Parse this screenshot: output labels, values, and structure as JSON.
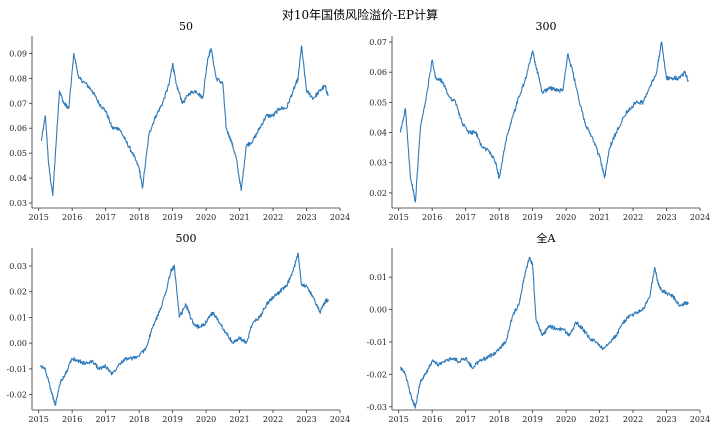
{
  "figure": {
    "title": "对10年国债风险溢价-EP计算"
  },
  "chart_data": [
    {
      "type": "line",
      "title": "50",
      "x_range": [
        2014.8,
        2024.0
      ],
      "xticks": [
        2015,
        2016,
        2017,
        2018,
        2019,
        2020,
        2021,
        2022,
        2023,
        2024
      ],
      "ylim": [
        0.028,
        0.097
      ],
      "yticks": [
        0.03,
        0.04,
        0.05,
        0.06,
        0.07,
        0.08,
        0.09
      ],
      "ytick_labels": [
        "0.03",
        "0.04",
        "0.05",
        "0.06",
        "0.07",
        "0.08",
        "0.09"
      ],
      "series": [
        {
          "x": [
            2015.08,
            2015.2,
            2015.3,
            2015.42,
            2015.5,
            2015.62,
            2015.75,
            2015.9,
            2016.05,
            2016.2,
            2016.4,
            2016.6,
            2016.8,
            2017.0,
            2017.2,
            2017.4,
            2017.6,
            2017.8,
            2018.0,
            2018.1,
            2018.3,
            2018.5,
            2018.7,
            2018.9,
            2019.0,
            2019.1,
            2019.3,
            2019.5,
            2019.7,
            2019.9,
            2020.05,
            2020.15,
            2020.3,
            2020.5,
            2020.6,
            2020.75,
            2020.9,
            2021.05,
            2021.2,
            2021.4,
            2021.6,
            2021.8,
            2022.0,
            2022.2,
            2022.4,
            2022.6,
            2022.75,
            2022.85,
            2023.0,
            2023.2,
            2023.4,
            2023.55,
            2023.65
          ],
          "y": [
            0.055,
            0.065,
            0.045,
            0.033,
            0.05,
            0.075,
            0.07,
            0.068,
            0.09,
            0.08,
            0.078,
            0.075,
            0.07,
            0.067,
            0.06,
            0.06,
            0.055,
            0.05,
            0.044,
            0.036,
            0.058,
            0.065,
            0.07,
            0.078,
            0.086,
            0.078,
            0.07,
            0.074,
            0.075,
            0.072,
            0.088,
            0.092,
            0.08,
            0.078,
            0.06,
            0.055,
            0.048,
            0.035,
            0.053,
            0.055,
            0.06,
            0.065,
            0.065,
            0.068,
            0.068,
            0.075,
            0.08,
            0.093,
            0.075,
            0.072,
            0.075,
            0.077,
            0.073
          ]
        }
      ]
    },
    {
      "type": "line",
      "title": "300",
      "x_range": [
        2014.8,
        2024.0
      ],
      "xticks": [
        2015,
        2016,
        2017,
        2018,
        2019,
        2020,
        2021,
        2022,
        2023,
        2024
      ],
      "ylim": [
        0.015,
        0.072
      ],
      "yticks": [
        0.02,
        0.03,
        0.04,
        0.05,
        0.06,
        0.07
      ],
      "ytick_labels": [
        "0.02",
        "0.03",
        "0.04",
        "0.05",
        "0.06",
        "0.07"
      ],
      "series": [
        {
          "x": [
            2015.05,
            2015.2,
            2015.35,
            2015.5,
            2015.65,
            2015.8,
            2016.0,
            2016.1,
            2016.3,
            2016.5,
            2016.7,
            2016.9,
            2017.1,
            2017.3,
            2017.5,
            2017.7,
            2017.9,
            2018.0,
            2018.2,
            2018.4,
            2018.6,
            2018.8,
            2019.0,
            2019.1,
            2019.3,
            2019.5,
            2019.7,
            2019.9,
            2020.05,
            2020.2,
            2020.4,
            2020.6,
            2020.8,
            2021.0,
            2021.15,
            2021.3,
            2021.5,
            2021.7,
            2021.9,
            2022.1,
            2022.3,
            2022.5,
            2022.7,
            2022.85,
            2023.0,
            2023.2,
            2023.4,
            2023.55,
            2023.65
          ],
          "y": [
            0.04,
            0.048,
            0.025,
            0.017,
            0.042,
            0.05,
            0.064,
            0.058,
            0.057,
            0.052,
            0.05,
            0.043,
            0.04,
            0.04,
            0.035,
            0.034,
            0.03,
            0.025,
            0.037,
            0.045,
            0.052,
            0.058,
            0.067,
            0.062,
            0.053,
            0.055,
            0.054,
            0.054,
            0.066,
            0.06,
            0.05,
            0.042,
            0.038,
            0.032,
            0.025,
            0.035,
            0.04,
            0.045,
            0.048,
            0.05,
            0.05,
            0.055,
            0.06,
            0.07,
            0.058,
            0.058,
            0.058,
            0.06,
            0.057
          ]
        }
      ]
    },
    {
      "type": "line",
      "title": "500",
      "x_range": [
        2014.8,
        2024.0
      ],
      "xticks": [
        2015,
        2016,
        2017,
        2018,
        2019,
        2020,
        2021,
        2022,
        2023,
        2024
      ],
      "ylim": [
        -0.026,
        0.037
      ],
      "yticks": [
        -0.02,
        -0.01,
        0.0,
        0.01,
        0.02,
        0.03
      ],
      "ytick_labels": [
        "-0.02",
        "-0.01",
        "0.00",
        "0.01",
        "0.02",
        "0.03"
      ],
      "series": [
        {
          "x": [
            2015.05,
            2015.2,
            2015.4,
            2015.5,
            2015.65,
            2015.8,
            2016.0,
            2016.2,
            2016.4,
            2016.6,
            2016.8,
            2017.0,
            2017.2,
            2017.4,
            2017.6,
            2017.8,
            2018.0,
            2018.2,
            2018.4,
            2018.6,
            2018.8,
            2018.95,
            2019.05,
            2019.2,
            2019.4,
            2019.6,
            2019.8,
            2020.0,
            2020.2,
            2020.4,
            2020.6,
            2020.8,
            2021.0,
            2021.2,
            2021.4,
            2021.6,
            2021.8,
            2022.0,
            2022.2,
            2022.4,
            2022.6,
            2022.75,
            2022.85,
            2023.0,
            2023.2,
            2023.4,
            2023.55,
            2023.65
          ],
          "y": [
            -0.009,
            -0.01,
            -0.02,
            -0.024,
            -0.015,
            -0.012,
            -0.006,
            -0.007,
            -0.008,
            -0.007,
            -0.01,
            -0.009,
            -0.012,
            -0.008,
            -0.006,
            -0.006,
            -0.005,
            -0.002,
            0.006,
            0.012,
            0.02,
            0.028,
            0.03,
            0.01,
            0.015,
            0.008,
            0.006,
            0.008,
            0.012,
            0.008,
            0.004,
            0.0,
            0.002,
            0.0,
            0.008,
            0.01,
            0.015,
            0.018,
            0.02,
            0.022,
            0.028,
            0.035,
            0.023,
            0.022,
            0.018,
            0.012,
            0.016,
            0.017
          ]
        }
      ]
    },
    {
      "type": "line",
      "title": "全A",
      "x_range": [
        2014.8,
        2024.0
      ],
      "xticks": [
        2015,
        2016,
        2017,
        2018,
        2019,
        2020,
        2021,
        2022,
        2023,
        2024
      ],
      "ylim": [
        -0.031,
        0.019
      ],
      "yticks": [
        -0.03,
        -0.02,
        -0.01,
        0.0,
        0.01
      ],
      "ytick_labels": [
        "-0.03",
        "-0.02",
        "-0.01",
        "0.00",
        "0.01"
      ],
      "series": [
        {
          "x": [
            2015.05,
            2015.2,
            2015.4,
            2015.5,
            2015.65,
            2015.8,
            2016.0,
            2016.2,
            2016.4,
            2016.6,
            2016.8,
            2017.0,
            2017.2,
            2017.4,
            2017.6,
            2017.8,
            2018.0,
            2018.2,
            2018.4,
            2018.6,
            2018.75,
            2018.9,
            2019.0,
            2019.1,
            2019.3,
            2019.5,
            2019.7,
            2019.9,
            2020.1,
            2020.3,
            2020.5,
            2020.7,
            2020.9,
            2021.1,
            2021.3,
            2021.5,
            2021.7,
            2021.9,
            2022.1,
            2022.3,
            2022.5,
            2022.65,
            2022.75,
            2022.85,
            2023.0,
            2023.2,
            2023.4,
            2023.55,
            2023.65
          ],
          "y": [
            -0.018,
            -0.02,
            -0.028,
            -0.03,
            -0.022,
            -0.02,
            -0.016,
            -0.017,
            -0.016,
            -0.015,
            -0.016,
            -0.015,
            -0.018,
            -0.016,
            -0.015,
            -0.014,
            -0.012,
            -0.01,
            -0.002,
            0.002,
            0.01,
            0.016,
            0.014,
            -0.003,
            -0.008,
            -0.005,
            -0.006,
            -0.006,
            -0.008,
            -0.004,
            -0.006,
            -0.009,
            -0.01,
            -0.012,
            -0.01,
            -0.008,
            -0.004,
            -0.002,
            -0.001,
            0.0,
            0.004,
            0.013,
            0.008,
            0.006,
            0.005,
            0.004,
            0.001,
            0.002,
            0.002
          ]
        }
      ]
    }
  ]
}
